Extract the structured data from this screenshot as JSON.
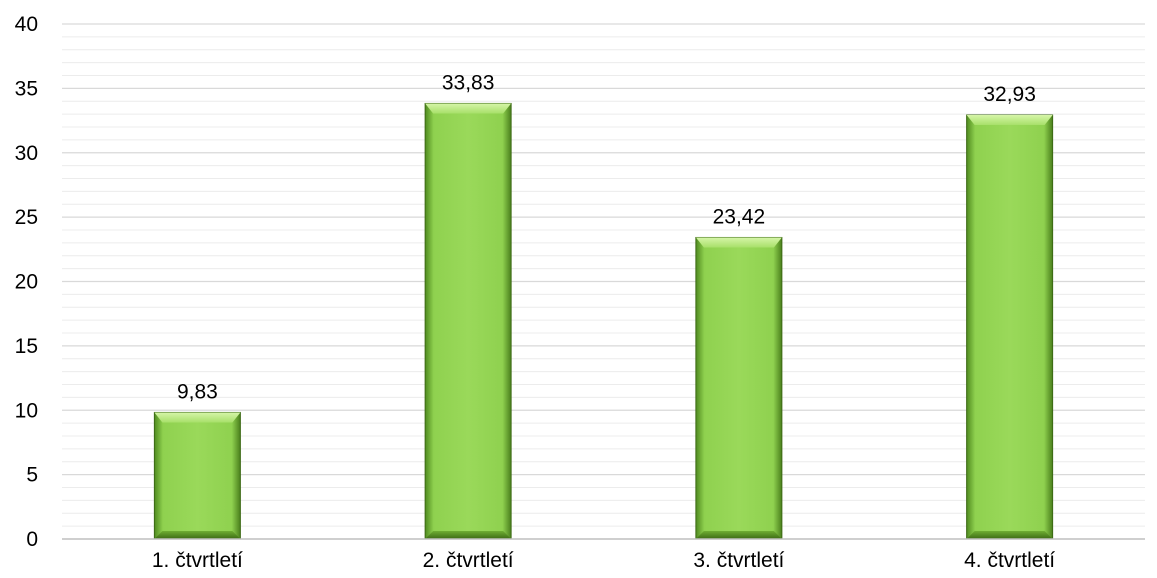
{
  "chart_data": {
    "type": "bar",
    "categories": [
      "1. čtvrtletí",
      "2. čtvrtletí",
      "3. čtvrtletí",
      "4. čtvrtletí"
    ],
    "values": [
      9.83,
      33.83,
      23.42,
      32.93
    ],
    "data_labels": [
      "9,83",
      "33,83",
      "23,42",
      "32,93"
    ],
    "y_ticks": [
      0,
      5,
      10,
      15,
      20,
      25,
      30,
      35,
      40
    ],
    "y_tick_labels": [
      "0",
      "5",
      "10",
      "15",
      "20",
      "25",
      "30",
      "35",
      "40"
    ],
    "ylim": [
      0,
      40
    ],
    "minor_step": 1,
    "grid": true,
    "legend": "none",
    "colors": {
      "bar_light": "#a8e06a",
      "bar_mid": "#8fd14f",
      "bar_dark": "#4a7f1c",
      "bar_edge": "#3c6a14",
      "major_grid": "#d9d9d9",
      "minor_grid": "#ececec",
      "axis": "#bfbfbf"
    }
  }
}
